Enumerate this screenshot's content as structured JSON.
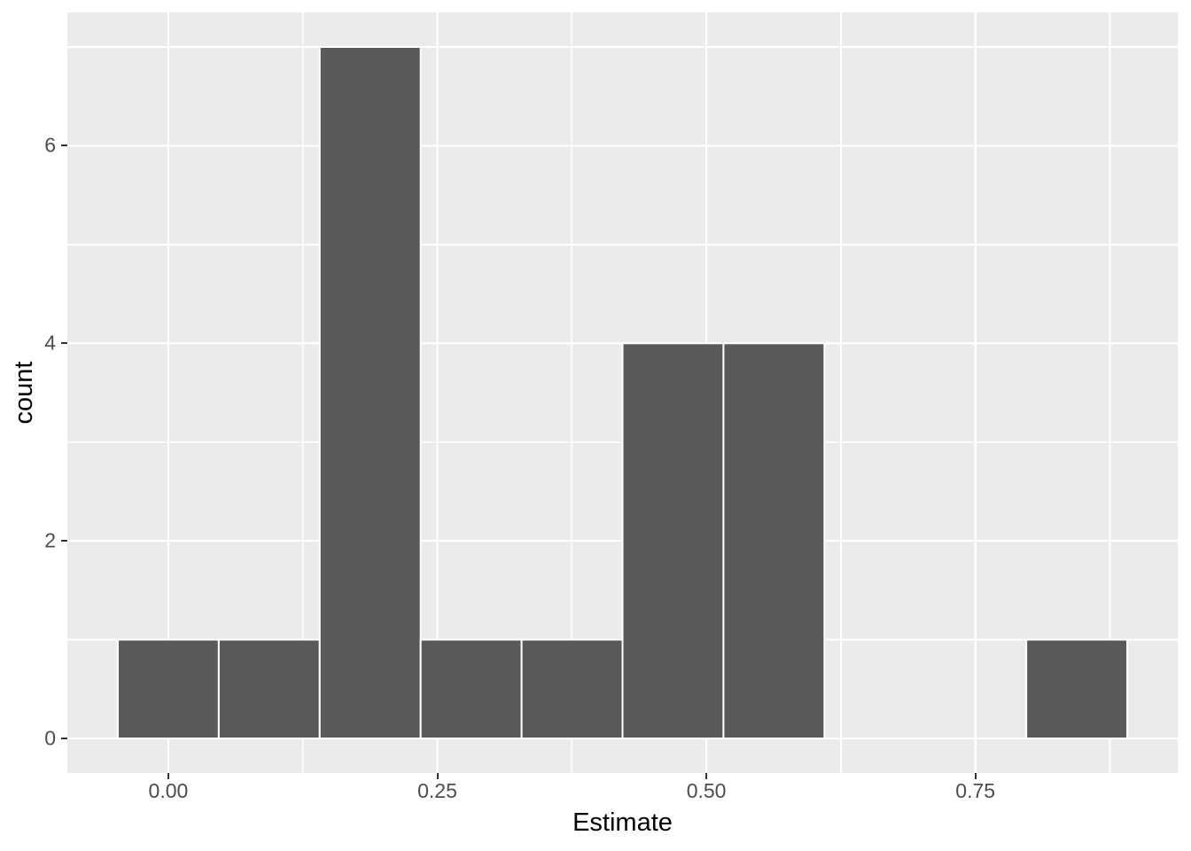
{
  "chart_data": {
    "type": "bar",
    "subtype": "histogram",
    "title": "",
    "xlabel": "Estimate",
    "ylabel": "count",
    "bin_edges": [
      -0.0469,
      0.0469,
      0.1407,
      0.2345,
      0.3283,
      0.4221,
      0.5159,
      0.6097,
      0.7035,
      0.7973,
      0.8911
    ],
    "counts": [
      1,
      1,
      7,
      1,
      1,
      4,
      4,
      0,
      0,
      1
    ],
    "x_ticks": {
      "values": [
        0.0,
        0.25,
        0.5,
        0.75
      ],
      "labels": [
        "0.00",
        "0.25",
        "0.50",
        "0.75"
      ]
    },
    "y_ticks": {
      "values": [
        0,
        2,
        4,
        6
      ],
      "labels": [
        "0",
        "2",
        "4",
        "6"
      ]
    },
    "x_minor": [
      0.125,
      0.375,
      0.625,
      0.875
    ],
    "y_minor": [
      1,
      3,
      5,
      7
    ],
    "xlim": [
      -0.0938,
      0.938
    ],
    "ylim": [
      -0.35,
      7.35
    ],
    "grid": true,
    "legend": false,
    "colors": {
      "bar_fill": "#595959",
      "bar_stroke": "#FFFFFF",
      "panel_bg": "#EBEBEB",
      "page_bg": "#FFFFFF",
      "grid_major": "#FFFFFF",
      "grid_minor": "#FFFFFF",
      "tick_mark": "#333333",
      "tick_label": "#4D4D4D",
      "axis_title": "#000000"
    }
  }
}
